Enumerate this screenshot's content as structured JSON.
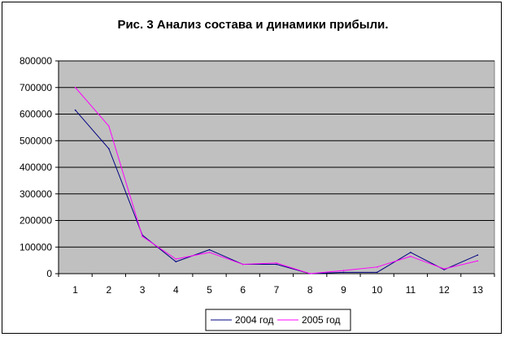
{
  "chart_data": {
    "type": "line",
    "title": "Рис. 3 Анализ состава и динамики прибыли.",
    "xlabel": "",
    "ylabel": "",
    "categories": [
      "1",
      "2",
      "3",
      "4",
      "5",
      "6",
      "7",
      "8",
      "9",
      "10",
      "11",
      "12",
      "13"
    ],
    "ylim": [
      0,
      800000
    ],
    "yticks": [
      "0",
      "100000",
      "200000",
      "300000",
      "400000",
      "500000",
      "600000",
      "700000",
      "800000"
    ],
    "ytick_values": [
      0,
      100000,
      200000,
      300000,
      400000,
      500000,
      600000,
      700000,
      800000
    ],
    "grid": true,
    "plot_background": "#c0c0c0",
    "legend_position": "bottom",
    "series": [
      {
        "name": "2004 год",
        "color": "#000080",
        "values": [
          615000,
          470000,
          145000,
          45000,
          90000,
          35000,
          35000,
          0,
          5000,
          5000,
          80000,
          15000,
          70000
        ]
      },
      {
        "name": "2005 год",
        "color": "#ff00ff",
        "values": [
          700000,
          555000,
          140000,
          55000,
          80000,
          35000,
          40000,
          0,
          12000,
          25000,
          65000,
          18000,
          48000
        ]
      }
    ]
  }
}
